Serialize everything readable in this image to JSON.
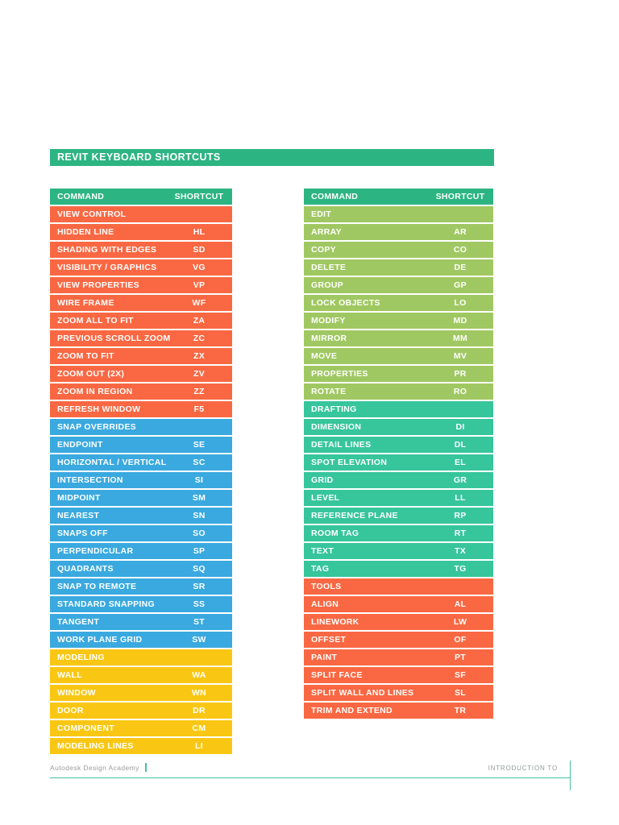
{
  "page": {
    "title": "REVIT KEYBOARD SHORTCUTS"
  },
  "colors": {
    "green": "#2DB483",
    "orange": "#F96843",
    "blue": "#3AA9DF",
    "yellow": "#F9C713",
    "light_green": "#A0C862",
    "teal": "#37C59C",
    "footer_line": "#44C2A2"
  },
  "tables": {
    "header": {
      "command": "COMMAND",
      "shortcut": "SHORTCUT"
    },
    "left": {
      "sections": [
        {
          "name": "VIEW CONTROL",
          "color": "orange",
          "rows": [
            [
              "HIDDEN LINE",
              "HL"
            ],
            [
              "SHADING WITH EDGES",
              "SD"
            ],
            [
              "VISIBILITY / GRAPHICS",
              "VG"
            ],
            [
              "VIEW PROPERTIES",
              "VP"
            ],
            [
              "WIRE FRAME",
              "WF"
            ],
            [
              "ZOOM ALL TO FIT",
              "ZA"
            ],
            [
              "PREVIOUS SCROLL ZOOM",
              "ZC"
            ],
            [
              "ZOOM TO FIT",
              "ZX"
            ],
            [
              "ZOOM OUT (2X)",
              "ZV"
            ],
            [
              "ZOOM IN REGION",
              "ZZ"
            ],
            [
              "REFRESH WINDOW",
              "F5"
            ]
          ]
        },
        {
          "name": "SNAP OVERRIDES",
          "color": "blue",
          "rows": [
            [
              "ENDPOINT",
              "SE"
            ],
            [
              "HORIZONTAL / VERTICAL",
              "SC"
            ],
            [
              "INTERSECTION",
              "SI"
            ],
            [
              "MIDPOINT",
              "SM"
            ],
            [
              "NEAREST",
              "SN"
            ],
            [
              "SNAPS OFF",
              "SO"
            ],
            [
              "PERPENDICULAR",
              "SP"
            ],
            [
              "QUADRANTS",
              "SQ"
            ],
            [
              "SNAP TO REMOTE",
              "SR"
            ],
            [
              "STANDARD SNAPPING",
              "SS"
            ],
            [
              "TANGENT",
              "ST"
            ],
            [
              "WORK PLANE GRID",
              "SW"
            ]
          ]
        },
        {
          "name": "MODELING",
          "color": "yellow",
          "rows": [
            [
              "WALL",
              "WA"
            ],
            [
              "WINDOW",
              "WN"
            ],
            [
              "DOOR",
              "DR"
            ],
            [
              "COMPONENT",
              "CM"
            ],
            [
              "MODELING LINES",
              "LI"
            ]
          ]
        }
      ]
    },
    "right": {
      "sections": [
        {
          "name": "EDIT",
          "color": "light_green",
          "rows": [
            [
              "ARRAY",
              "AR"
            ],
            [
              "COPY",
              "CO"
            ],
            [
              "DELETE",
              "DE"
            ],
            [
              "GROUP",
              "GP"
            ],
            [
              "LOCK OBJECTS",
              "LO"
            ],
            [
              "MODIFY",
              "MD"
            ],
            [
              "MIRROR",
              "MM"
            ],
            [
              "MOVE",
              "MV"
            ],
            [
              "PROPERTIES",
              "PR"
            ],
            [
              "ROTATE",
              "RO"
            ]
          ]
        },
        {
          "name": "DRAFTING",
          "color": "teal",
          "rows": [
            [
              "DIMENSION",
              "DI"
            ],
            [
              "DETAIL LINES",
              "DL"
            ],
            [
              "SPOT ELEVATION",
              "EL"
            ],
            [
              "GRID",
              "GR"
            ],
            [
              "LEVEL",
              "LL"
            ],
            [
              "REFERENCE PLANE",
              "RP"
            ],
            [
              "ROOM TAG",
              "RT"
            ],
            [
              "TEXT",
              "TX"
            ],
            [
              "TAG",
              "TG"
            ]
          ]
        },
        {
          "name": "TOOLS",
          "color": "orange",
          "rows": [
            [
              "ALIGN",
              "AL"
            ],
            [
              "LINEWORK",
              "LW"
            ],
            [
              "OFFSET",
              "OF"
            ],
            [
              "PAINT",
              "PT"
            ],
            [
              "SPLIT FACE",
              "SF"
            ],
            [
              "SPLIT WALL AND LINES",
              "SL"
            ],
            [
              "TRIM AND EXTEND",
              "TR"
            ]
          ]
        }
      ]
    }
  },
  "footer": {
    "left_text": "Autodesk Design Academy",
    "right_text": "INTRODUCTION TO"
  }
}
